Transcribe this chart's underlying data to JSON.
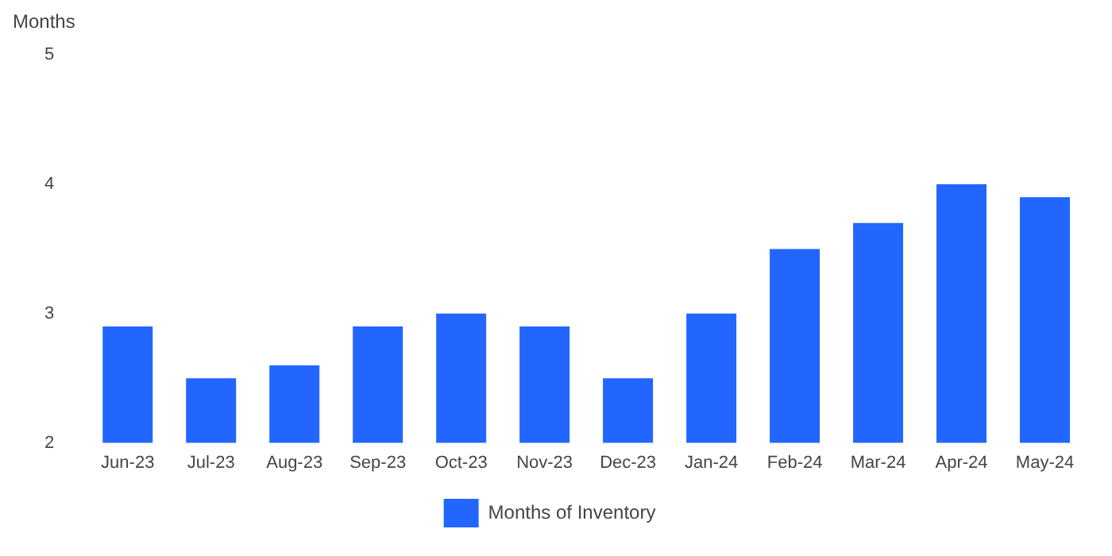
{
  "chart_data": {
    "type": "bar",
    "ylabel": "Months",
    "categories": [
      "Jun-23",
      "Jul-23",
      "Aug-23",
      "Sep-23",
      "Oct-23",
      "Nov-23",
      "Dec-23",
      "Jan-24",
      "Feb-24",
      "Mar-24",
      "Apr-24",
      "May-24"
    ],
    "series": [
      {
        "name": "Months of Inventory",
        "color": "#2266ff",
        "values": [
          2.9,
          2.5,
          2.6,
          2.9,
          3.0,
          2.9,
          2.5,
          3.0,
          3.5,
          3.7,
          4.0,
          3.9
        ]
      }
    ],
    "ylim": [
      2,
      5
    ],
    "yticks": [
      2,
      3,
      4,
      5
    ],
    "grid": false,
    "legend": "bottom"
  }
}
